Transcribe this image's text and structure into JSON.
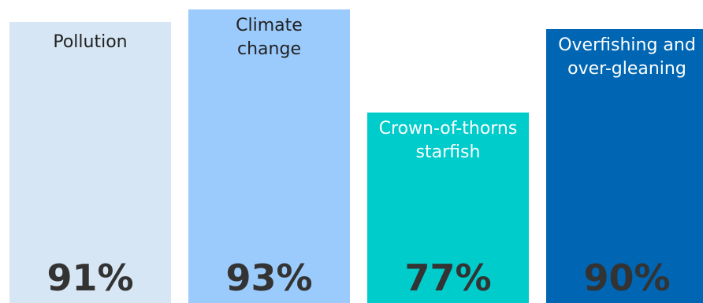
{
  "chart_data": {
    "type": "bar",
    "categories": [
      "Pollution",
      "Climate\nchange",
      "Crown-of-thorns\nstarfish",
      "Overfishing and\nover-gleaning"
    ],
    "values": [
      91,
      93,
      77,
      90
    ],
    "value_labels": [
      "91%",
      "93%",
      "77%",
      "90%"
    ],
    "colors": [
      "#d6e6f4",
      "#9bcbfc",
      "#00cccc",
      "#0066b3"
    ],
    "label_colors": [
      "#222222",
      "#222222",
      "#ffffff",
      "#ffffff"
    ],
    "title": "",
    "xlabel": "",
    "ylabel": "",
    "grid": false
  }
}
